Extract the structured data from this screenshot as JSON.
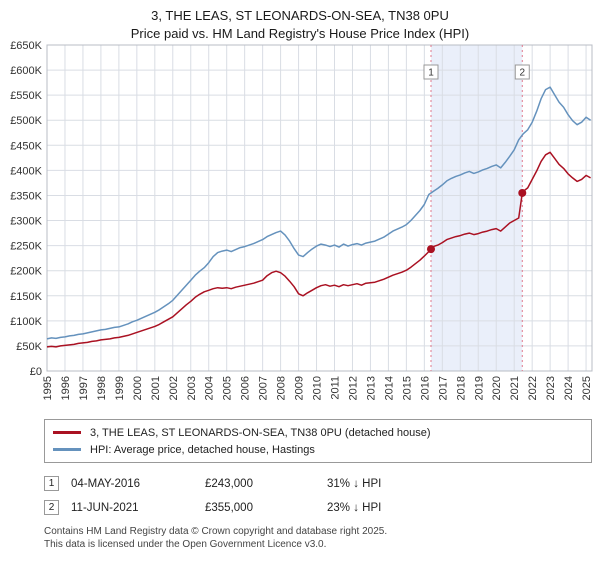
{
  "title": "3, THE LEAS, ST LEONARDS-ON-SEA, TN38 0PU",
  "subtitle": "Price paid vs. HM Land Registry's House Price Index (HPI)",
  "chart_data": {
    "type": "line",
    "x_start": 1995,
    "x_step": 0.25,
    "x_max": 2025.33,
    "x_ticks": [
      1995,
      1996,
      1997,
      1998,
      1999,
      2000,
      2001,
      2002,
      2003,
      2004,
      2005,
      2006,
      2007,
      2008,
      2009,
      2010,
      2011,
      2012,
      2013,
      2014,
      2015,
      2016,
      2017,
      2018,
      2019,
      2020,
      2021,
      2022,
      2023,
      2024,
      2025
    ],
    "ylim_k": [
      0,
      650
    ],
    "y_ticks_k": [
      0,
      50,
      100,
      150,
      200,
      250,
      300,
      350,
      400,
      450,
      500,
      550,
      600,
      650
    ],
    "y_tick_labels": [
      "£0",
      "£50K",
      "£100K",
      "£150K",
      "£200K",
      "£250K",
      "£300K",
      "£350K",
      "£400K",
      "£450K",
      "£500K",
      "£550K",
      "£600K",
      "£650K"
    ],
    "grid_color": "#d9dde4",
    "border_color": "#b8bcc4",
    "band": {
      "from": 2016.37,
      "to": 2021.45,
      "color": "#eaeffa"
    },
    "vline_color": "#e0788c",
    "marker_box_border": "#999999",
    "series": [
      {
        "name": "3, THE LEAS, ST LEONARDS-ON-SEA, TN38 0PU (detached house)",
        "color": "#aa1122",
        "values_k": [
          48,
          49,
          48,
          50,
          51,
          52,
          53,
          55,
          56,
          57,
          59,
          60,
          62,
          63,
          64,
          66,
          67,
          69,
          71,
          74,
          77,
          80,
          83,
          86,
          89,
          93,
          98,
          103,
          108,
          116,
          124,
          132,
          139,
          147,
          153,
          158,
          161,
          164,
          166,
          165,
          166,
          164,
          167,
          169,
          171,
          173,
          175,
          178,
          181,
          190,
          196,
          199,
          196,
          189,
          179,
          168,
          154,
          150,
          156,
          161,
          166,
          170,
          172,
          169,
          171,
          168,
          172,
          170,
          172,
          174,
          171,
          175,
          176,
          177,
          180,
          183,
          187,
          191,
          194,
          197,
          201,
          207,
          214,
          221,
          229,
          238,
          248,
          251,
          256,
          262,
          265,
          268,
          270,
          273,
          275,
          272,
          274,
          277,
          279,
          282,
          284,
          279,
          287,
          295,
          300,
          305,
          358,
          365,
          382,
          399,
          418,
          431,
          436,
          424,
          412,
          404,
          393,
          385,
          378,
          382,
          390,
          385
        ]
      },
      {
        "name": "HPI: Average price, detached house, Hastings",
        "color": "#6592bd",
        "values_k": [
          64,
          66,
          65,
          67,
          68,
          70,
          71,
          73,
          74,
          76,
          78,
          80,
          82,
          83,
          85,
          87,
          88,
          91,
          94,
          98,
          101,
          105,
          109,
          113,
          117,
          122,
          128,
          134,
          141,
          151,
          161,
          171,
          181,
          191,
          199,
          206,
          216,
          228,
          236,
          239,
          241,
          238,
          242,
          246,
          248,
          251,
          254,
          258,
          262,
          268,
          272,
          276,
          279,
          271,
          259,
          244,
          231,
          228,
          236,
          243,
          249,
          253,
          251,
          248,
          251,
          247,
          253,
          249,
          252,
          254,
          251,
          255,
          257,
          259,
          263,
          267,
          273,
          279,
          283,
          287,
          292,
          300,
          310,
          320,
          332,
          352,
          358,
          364,
          371,
          379,
          384,
          388,
          391,
          395,
          398,
          394,
          397,
          401,
          404,
          408,
          411,
          405,
          416,
          428,
          441,
          461,
          473,
          481,
          496,
          518,
          543,
          561,
          566,
          551,
          536,
          526,
          511,
          499,
          491,
          496,
          506,
          500
        ]
      }
    ],
    "markers": [
      {
        "label": "1",
        "x": 2016.37,
        "value_k": 243,
        "series": 0
      },
      {
        "label": "2",
        "x": 2021.45,
        "value_k": 355,
        "series": 0
      }
    ]
  },
  "sales": [
    {
      "n": "1",
      "date": "04-MAY-2016",
      "price": "£243,000",
      "hpi": "31% ↓ HPI"
    },
    {
      "n": "2",
      "date": "11-JUN-2021",
      "price": "£355,000",
      "hpi": "23% ↓ HPI"
    }
  ],
  "footer": {
    "line1": "Contains HM Land Registry data © Crown copyright and database right 2025.",
    "line2": "This data is licensed under the Open Government Licence v3.0."
  }
}
